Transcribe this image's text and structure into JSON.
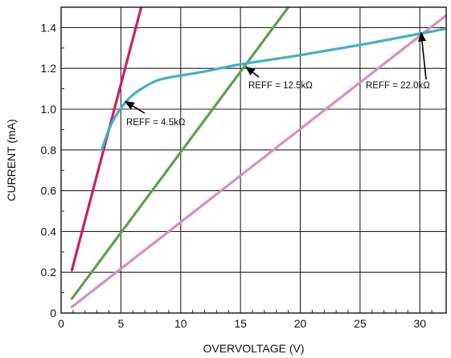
{
  "chart_data": {
    "type": "line",
    "title": "",
    "xlabel": "OVERVOLTAGE (V)",
    "ylabel": "CURRENT (mA)",
    "xlim": [
      0,
      32.2
    ],
    "ylim": [
      0,
      1.5
    ],
    "x_ticks": [
      0,
      5,
      10,
      15,
      20,
      25,
      30
    ],
    "y_ticks": [
      0,
      0.2,
      0.4,
      0.6,
      0.8,
      1.0,
      1.2,
      1.4
    ],
    "x_tick_labels": [
      "0",
      "5",
      "10",
      "15",
      "20",
      "25",
      "30"
    ],
    "y_tick_labels": [
      "0",
      "0.2",
      "0.4",
      "0.6",
      "0.8",
      "1.0",
      "1.2",
      "1.4"
    ],
    "grid": true,
    "series": [
      {
        "color": "#ca1f66",
        "x": [
          0.9,
          6.7
        ],
        "y": [
          0.21,
          1.5
        ]
      },
      {
        "color": "#5ca24c",
        "x": [
          0.9,
          19.0
        ],
        "y": [
          0.07,
          1.5
        ]
      },
      {
        "color": "#d78fbe",
        "x": [
          0.9,
          32.2
        ],
        "y": [
          0.03,
          1.46
        ]
      },
      {
        "color": "#3fb1c8",
        "x": [
          3.4,
          4.0,
          4.6,
          5.2,
          6.0,
          7.0,
          8.0,
          9.0,
          10.0,
          12.0,
          15.0,
          20.0,
          25.0,
          30.0,
          32.2
        ],
        "y": [
          0.8,
          0.9,
          0.97,
          1.02,
          1.07,
          1.11,
          1.14,
          1.155,
          1.165,
          1.185,
          1.22,
          1.265,
          1.315,
          1.37,
          1.395
        ]
      }
    ],
    "annotations": [
      {
        "text": "REFF = 4.5kΩ",
        "x": 5.3,
        "y": 1.04
      },
      {
        "text": "REFF = 12.5kΩ",
        "x": 15.4,
        "y": 1.21
      },
      {
        "text": "REFF = 22.0kΩ",
        "x": 30.1,
        "y": 1.38
      }
    ]
  }
}
